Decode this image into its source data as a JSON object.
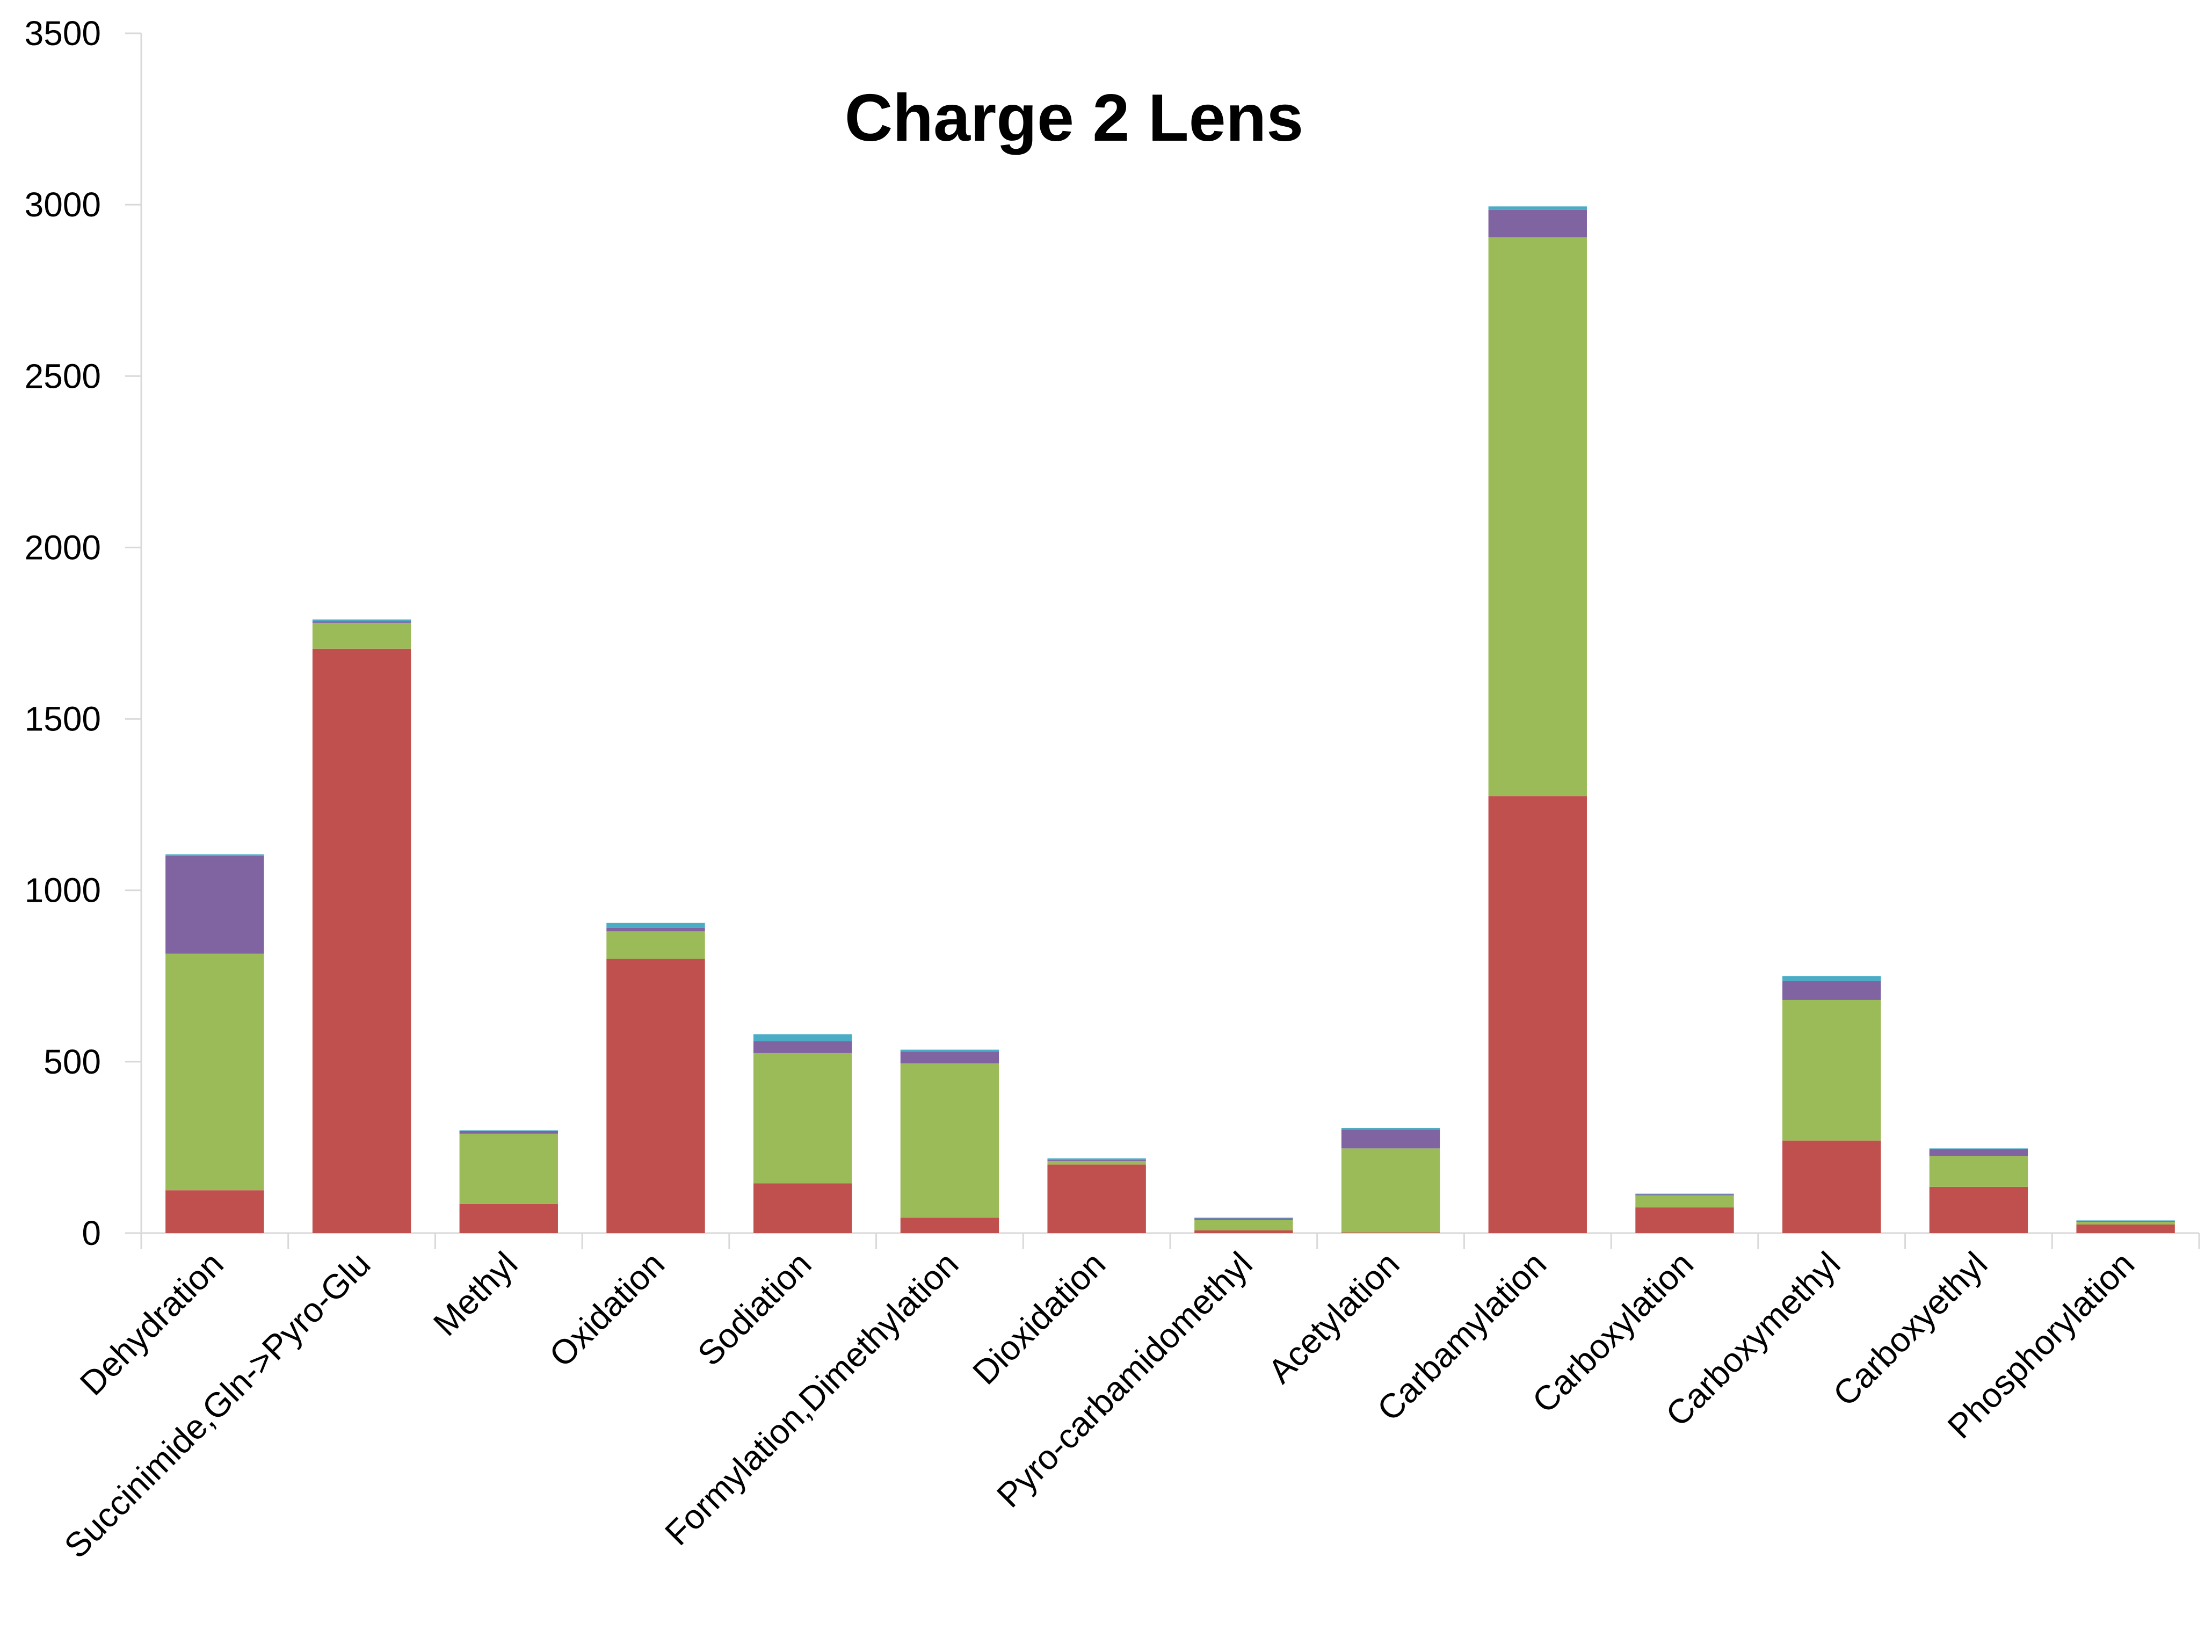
{
  "chart_data": {
    "type": "bar",
    "stacked": true,
    "title": "Charge 2 Lens",
    "xlabel": "",
    "ylabel": "",
    "ylim": [
      0,
      3500
    ],
    "yticks": [
      0,
      500,
      1000,
      1500,
      2000,
      2500,
      3000,
      3500
    ],
    "grid": false,
    "legend": "none",
    "categories": [
      "Dehydration",
      "Succinimide,Gln->Pyro-Glu",
      "Methyl",
      "Oxidation",
      "Sodiation",
      "Formylation,Dimethylation",
      "Dioxidation",
      "Pyro-carbamidomethyl",
      "Acetylation",
      "Carbamylation",
      "Carboxylation",
      "Carboxymethyl",
      "Carboxyethyl",
      "Phosphorylation"
    ],
    "series": [
      {
        "color": "#c0504d",
        "values": [
          125,
          1705,
          85,
          800,
          145,
          45,
          200,
          8,
          2,
          1275,
          75,
          270,
          135,
          25
        ]
      },
      {
        "color": "#9bbb59",
        "values": [
          690,
          75,
          205,
          80,
          380,
          450,
          10,
          30,
          245,
          1630,
          35,
          410,
          90,
          8
        ]
      },
      {
        "color": "#8064a2",
        "values": [
          285,
          5,
          8,
          10,
          35,
          35,
          3,
          5,
          55,
          80,
          3,
          55,
          20,
          2
        ]
      },
      {
        "color": "#4bacc6",
        "values": [
          5,
          5,
          2,
          15,
          20,
          5,
          5,
          2,
          5,
          10,
          2,
          15,
          2,
          2
        ]
      }
    ]
  }
}
